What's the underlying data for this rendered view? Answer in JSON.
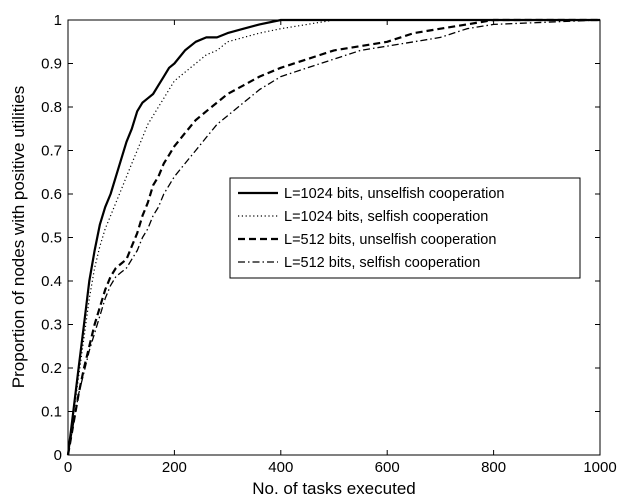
{
  "chart_data": {
    "type": "line",
    "title": "",
    "xlabel": "No. of tasks executed",
    "ylabel": "Proportion of nodes with positive utilities",
    "xlim": [
      0,
      1000
    ],
    "ylim": [
      0,
      1
    ],
    "xticks": [
      "0",
      "200",
      "400",
      "600",
      "800",
      "1000"
    ],
    "yticks": [
      "0",
      "0.1",
      "0.2",
      "0.3",
      "0.4",
      "0.5",
      "0.6",
      "0.7",
      "0.8",
      "0.9",
      "1"
    ],
    "grid": false,
    "legend_position": "right-middle",
    "series": [
      {
        "name": "L=1024 bits, unselfish cooperation",
        "style": "solid",
        "color": "#000000",
        "x": [
          0,
          10,
          20,
          30,
          40,
          50,
          60,
          70,
          80,
          90,
          100,
          110,
          120,
          130,
          140,
          150,
          160,
          170,
          180,
          190,
          200,
          220,
          240,
          260,
          280,
          300,
          330,
          360,
          400,
          450,
          500,
          600,
          700,
          800,
          1000
        ],
        "y": [
          0,
          0.1,
          0.2,
          0.3,
          0.4,
          0.47,
          0.53,
          0.57,
          0.6,
          0.64,
          0.68,
          0.72,
          0.75,
          0.79,
          0.81,
          0.82,
          0.83,
          0.85,
          0.87,
          0.89,
          0.9,
          0.93,
          0.95,
          0.96,
          0.96,
          0.97,
          0.98,
          0.99,
          1.0,
          1.0,
          1.0,
          1.0,
          1.0,
          1.0,
          1.0
        ]
      },
      {
        "name": "L=1024 bits, selfish cooperation",
        "style": "dotted",
        "color": "#000000",
        "x": [
          0,
          10,
          20,
          30,
          40,
          50,
          60,
          70,
          80,
          90,
          100,
          110,
          120,
          130,
          140,
          150,
          160,
          170,
          180,
          190,
          200,
          220,
          240,
          260,
          280,
          300,
          330,
          360,
          400,
          450,
          500,
          600,
          700,
          800,
          1000
        ],
        "y": [
          0,
          0.09,
          0.18,
          0.27,
          0.36,
          0.43,
          0.48,
          0.52,
          0.55,
          0.58,
          0.61,
          0.64,
          0.67,
          0.7,
          0.73,
          0.76,
          0.78,
          0.8,
          0.82,
          0.84,
          0.86,
          0.88,
          0.9,
          0.92,
          0.93,
          0.95,
          0.96,
          0.97,
          0.98,
          0.99,
          1.0,
          1.0,
          1.0,
          1.0,
          1.0
        ]
      },
      {
        "name": "L=512 bits, unselfish cooperation",
        "style": "dashed",
        "color": "#000000",
        "x": [
          0,
          10,
          20,
          30,
          40,
          50,
          60,
          70,
          80,
          90,
          100,
          110,
          120,
          130,
          140,
          150,
          160,
          170,
          180,
          190,
          200,
          220,
          240,
          260,
          280,
          300,
          330,
          360,
          400,
          450,
          500,
          550,
          600,
          650,
          700,
          750,
          800,
          1000
        ],
        "y": [
          0,
          0.07,
          0.14,
          0.2,
          0.25,
          0.3,
          0.34,
          0.38,
          0.41,
          0.43,
          0.44,
          0.45,
          0.48,
          0.51,
          0.55,
          0.58,
          0.62,
          0.64,
          0.67,
          0.69,
          0.71,
          0.74,
          0.77,
          0.79,
          0.81,
          0.83,
          0.85,
          0.87,
          0.89,
          0.91,
          0.93,
          0.94,
          0.95,
          0.97,
          0.98,
          0.99,
          1.0,
          1.0
        ]
      },
      {
        "name": "L=512 bits, selfish cooperation",
        "style": "dashdot",
        "color": "#000000",
        "x": [
          0,
          10,
          20,
          30,
          40,
          50,
          60,
          70,
          80,
          90,
          100,
          110,
          120,
          130,
          140,
          150,
          160,
          170,
          180,
          190,
          200,
          220,
          240,
          260,
          280,
          300,
          330,
          360,
          400,
          450,
          500,
          550,
          600,
          650,
          700,
          750,
          800,
          1000
        ],
        "y": [
          0,
          0.07,
          0.14,
          0.19,
          0.24,
          0.28,
          0.32,
          0.36,
          0.39,
          0.41,
          0.42,
          0.43,
          0.45,
          0.47,
          0.5,
          0.52,
          0.55,
          0.57,
          0.6,
          0.62,
          0.64,
          0.67,
          0.7,
          0.73,
          0.76,
          0.78,
          0.81,
          0.84,
          0.87,
          0.89,
          0.91,
          0.93,
          0.94,
          0.95,
          0.96,
          0.98,
          0.99,
          1.0
        ]
      }
    ]
  }
}
